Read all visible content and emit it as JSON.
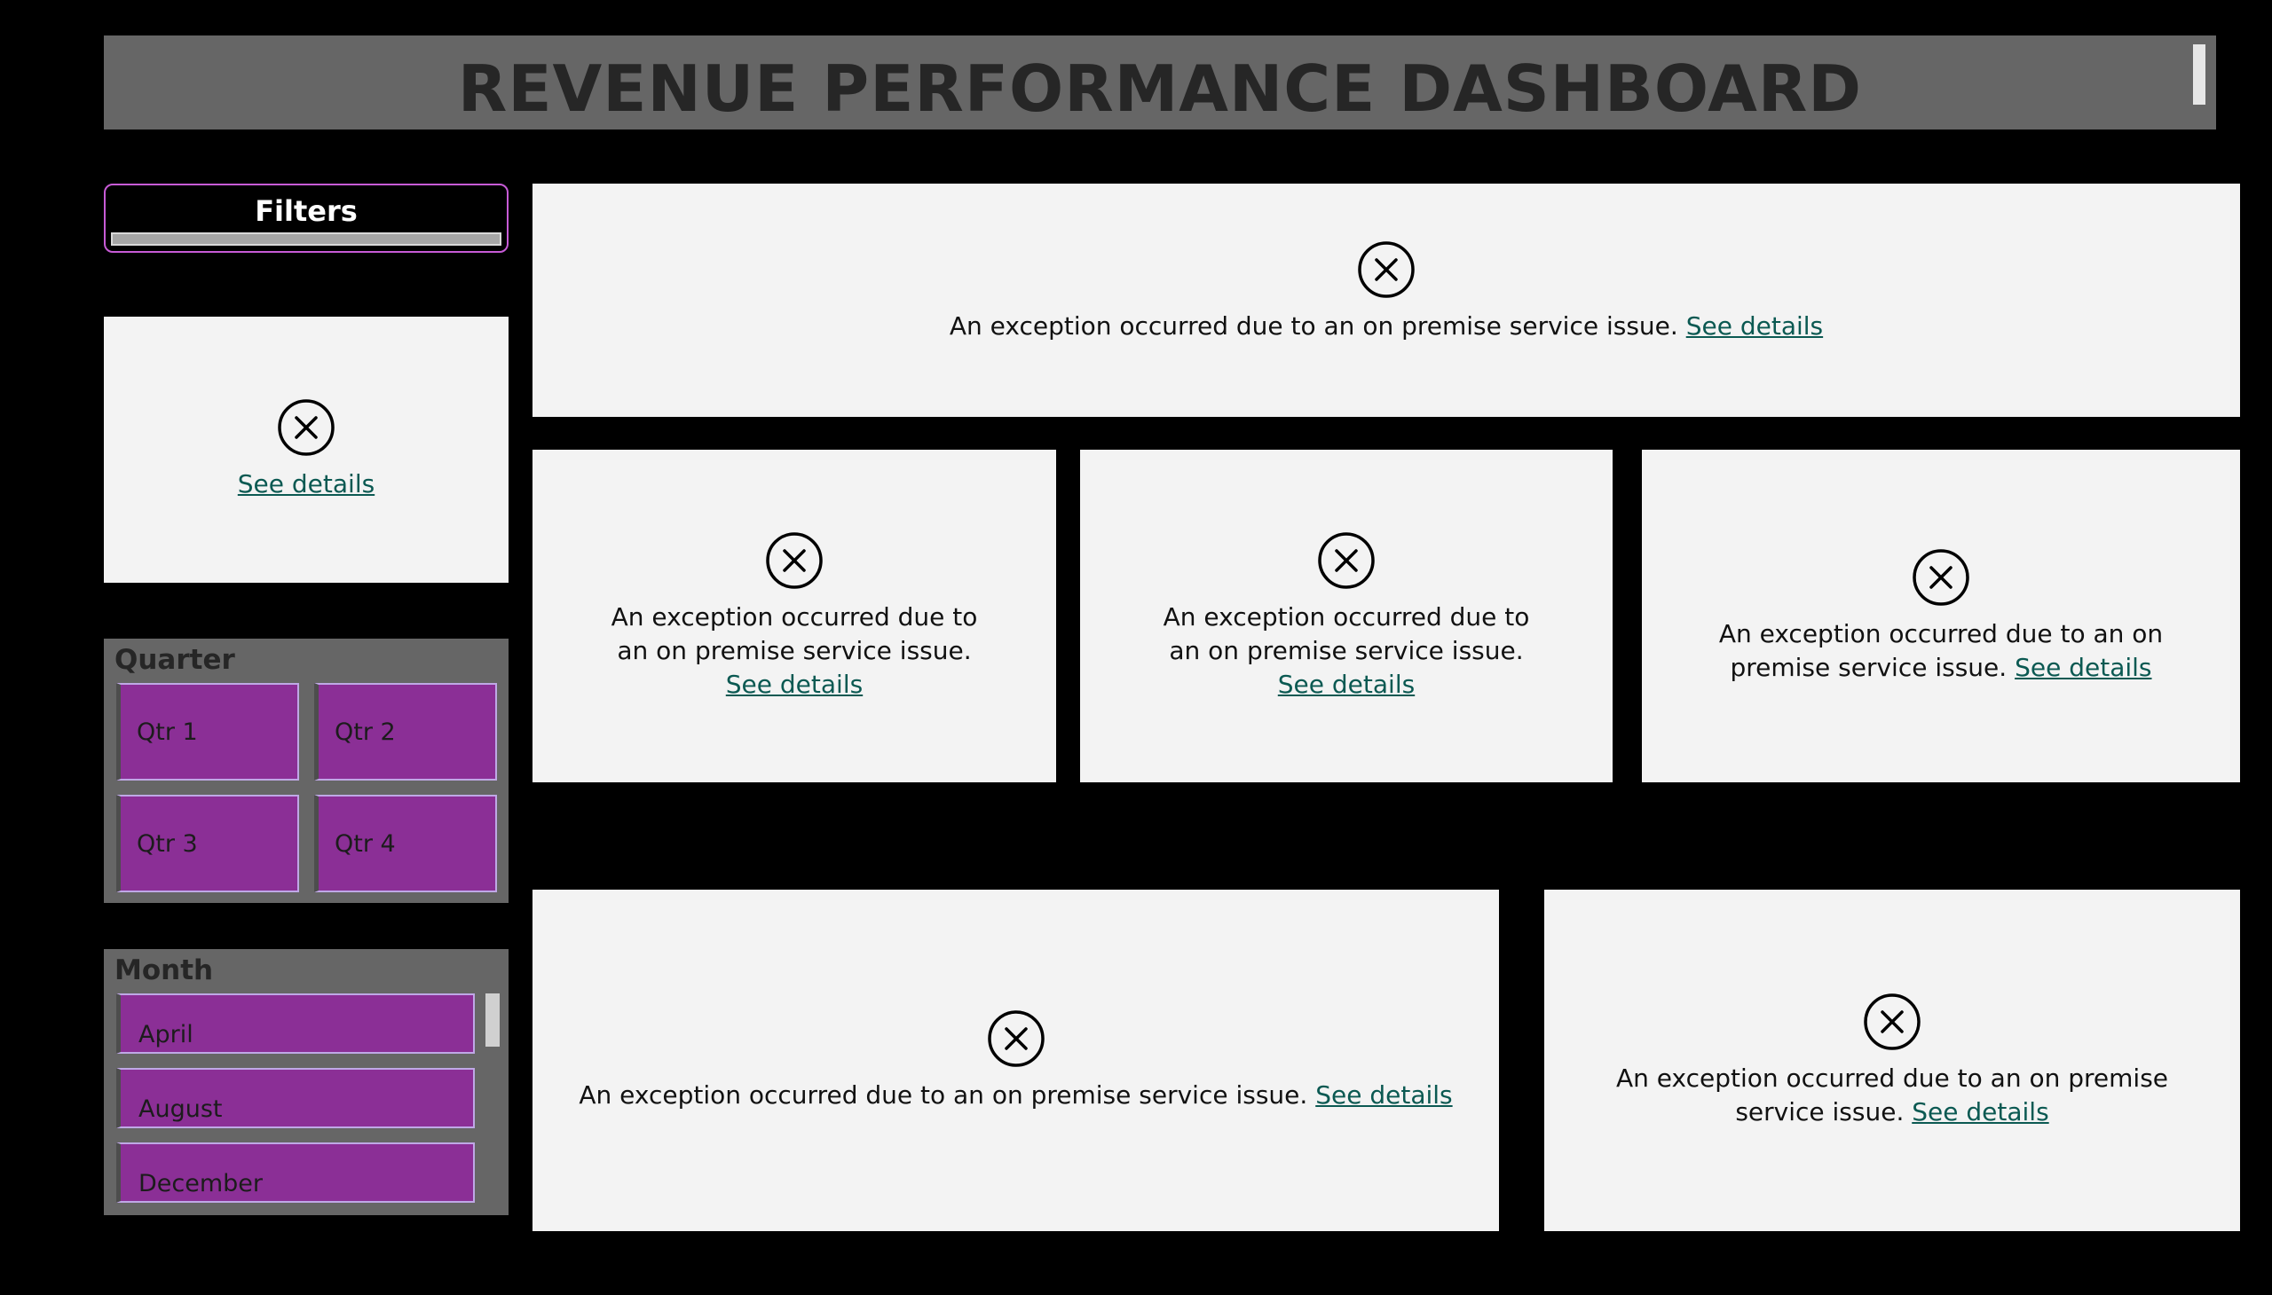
{
  "header": {
    "title": "REVENUE PERFORMANCE DASHBOARD"
  },
  "filters": {
    "label": "Filters"
  },
  "errors": {
    "message": "An exception occurred due to an on premise service issue.",
    "link": "See details"
  },
  "quarter_slicer": {
    "title": "Quarter",
    "items": [
      "Qtr 1",
      "Qtr 2",
      "Qtr 3",
      "Qtr 4"
    ]
  },
  "month_slicer": {
    "title": "Month",
    "items": [
      "April",
      "August",
      "December"
    ]
  },
  "colors": {
    "background": "#000000",
    "header": "#666666",
    "tile": "#f3f3f3",
    "slicer_item": "#8b2f96",
    "filters_border": "#c75bd6",
    "link": "#0b5952"
  }
}
